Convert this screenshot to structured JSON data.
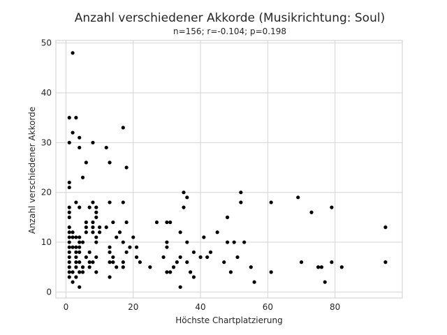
{
  "chart_data": {
    "type": "scatter",
    "title": "Anzahl verschiedener Akkorde (Musikrichtung: Soul)",
    "subtitle": "n=156; r=-0.104; p=0.198",
    "xlabel": "Höchste Chartplatzierung",
    "ylabel": "Anzahl verschiedener Akkorde",
    "xlim": [
      -3,
      100
    ],
    "ylim": [
      -1.2,
      50.5
    ],
    "xticks": [
      0,
      20,
      40,
      60,
      80
    ],
    "yticks": [
      0,
      10,
      20,
      30,
      40,
      50
    ],
    "grid": true,
    "marker_color": "#000000",
    "points": [
      [
        2,
        48
      ],
      [
        1,
        35
      ],
      [
        3,
        35
      ],
      [
        2,
        32
      ],
      [
        17,
        33
      ],
      [
        1,
        30
      ],
      [
        4,
        31
      ],
      [
        4,
        29
      ],
      [
        8,
        30
      ],
      [
        12,
        29
      ],
      [
        6,
        26
      ],
      [
        13,
        26
      ],
      [
        18,
        25
      ],
      [
        5,
        23
      ],
      [
        1,
        22
      ],
      [
        1,
        21
      ],
      [
        35,
        20
      ],
      [
        52,
        20
      ],
      [
        36,
        19
      ],
      [
        69,
        19
      ],
      [
        3,
        18
      ],
      [
        8,
        18
      ],
      [
        13,
        18
      ],
      [
        17,
        18
      ],
      [
        52,
        18
      ],
      [
        61,
        18
      ],
      [
        1,
        17
      ],
      [
        4,
        17
      ],
      [
        7,
        17
      ],
      [
        9,
        17
      ],
      [
        35,
        17
      ],
      [
        79,
        17
      ],
      [
        1,
        16
      ],
      [
        9,
        16
      ],
      [
        73,
        16
      ],
      [
        1,
        15
      ],
      [
        9,
        15
      ],
      [
        48,
        15
      ],
      [
        6,
        14
      ],
      [
        8,
        14
      ],
      [
        14,
        14
      ],
      [
        18,
        14
      ],
      [
        27,
        14
      ],
      [
        30,
        14
      ],
      [
        31,
        14
      ],
      [
        1,
        13
      ],
      [
        6,
        13
      ],
      [
        8,
        13
      ],
      [
        10,
        13
      ],
      [
        12,
        13
      ],
      [
        95,
        13
      ],
      [
        1,
        12
      ],
      [
        2,
        12
      ],
      [
        6,
        12
      ],
      [
        8,
        12
      ],
      [
        10,
        12
      ],
      [
        16,
        12
      ],
      [
        34,
        12
      ],
      [
        45,
        12
      ],
      [
        1,
        11
      ],
      [
        2,
        11
      ],
      [
        3,
        11
      ],
      [
        4,
        11
      ],
      [
        9,
        11
      ],
      [
        15,
        11
      ],
      [
        20,
        11
      ],
      [
        41,
        11
      ],
      [
        1,
        10
      ],
      [
        4,
        10
      ],
      [
        5,
        10
      ],
      [
        9,
        10
      ],
      [
        17,
        10
      ],
      [
        30,
        10
      ],
      [
        36,
        10
      ],
      [
        48,
        10
      ],
      [
        50,
        10
      ],
      [
        53,
        10
      ],
      [
        1,
        9
      ],
      [
        2,
        9
      ],
      [
        3,
        9
      ],
      [
        4,
        9
      ],
      [
        13,
        9
      ],
      [
        19,
        9
      ],
      [
        21,
        9
      ],
      [
        30,
        9
      ],
      [
        1,
        8
      ],
      [
        3,
        8
      ],
      [
        4,
        8
      ],
      [
        7,
        8
      ],
      [
        13,
        8
      ],
      [
        18,
        8
      ],
      [
        38,
        8
      ],
      [
        43,
        8
      ],
      [
        1,
        7
      ],
      [
        3,
        7
      ],
      [
        6,
        7
      ],
      [
        9,
        7
      ],
      [
        14,
        7
      ],
      [
        21,
        7
      ],
      [
        29,
        7
      ],
      [
        34,
        7
      ],
      [
        40,
        7
      ],
      [
        42,
        7
      ],
      [
        51,
        7
      ],
      [
        1,
        6
      ],
      [
        3,
        6
      ],
      [
        4,
        6
      ],
      [
        7,
        6
      ],
      [
        8,
        6
      ],
      [
        13,
        6
      ],
      [
        14,
        6
      ],
      [
        17,
        6
      ],
      [
        22,
        6
      ],
      [
        33,
        6
      ],
      [
        36,
        6
      ],
      [
        47,
        6
      ],
      [
        70,
        6
      ],
      [
        79,
        6
      ],
      [
        95,
        6
      ],
      [
        1,
        5
      ],
      [
        3,
        5
      ],
      [
        5,
        5
      ],
      [
        7,
        5
      ],
      [
        15,
        5
      ],
      [
        17,
        5
      ],
      [
        25,
        5
      ],
      [
        32,
        5
      ],
      [
        55,
        5
      ],
      [
        75,
        5
      ],
      [
        76,
        5
      ],
      [
        82,
        5
      ],
      [
        1,
        4
      ],
      [
        2,
        4
      ],
      [
        4,
        4
      ],
      [
        5,
        4
      ],
      [
        9,
        4
      ],
      [
        30,
        4
      ],
      [
        31,
        4
      ],
      [
        37,
        4
      ],
      [
        49,
        4
      ],
      [
        61,
        4
      ],
      [
        1,
        3
      ],
      [
        3,
        3
      ],
      [
        13,
        3
      ],
      [
        38,
        3
      ],
      [
        2,
        2
      ],
      [
        56,
        2
      ],
      [
        77,
        2
      ],
      [
        4,
        1
      ],
      [
        34,
        1
      ]
    ]
  }
}
